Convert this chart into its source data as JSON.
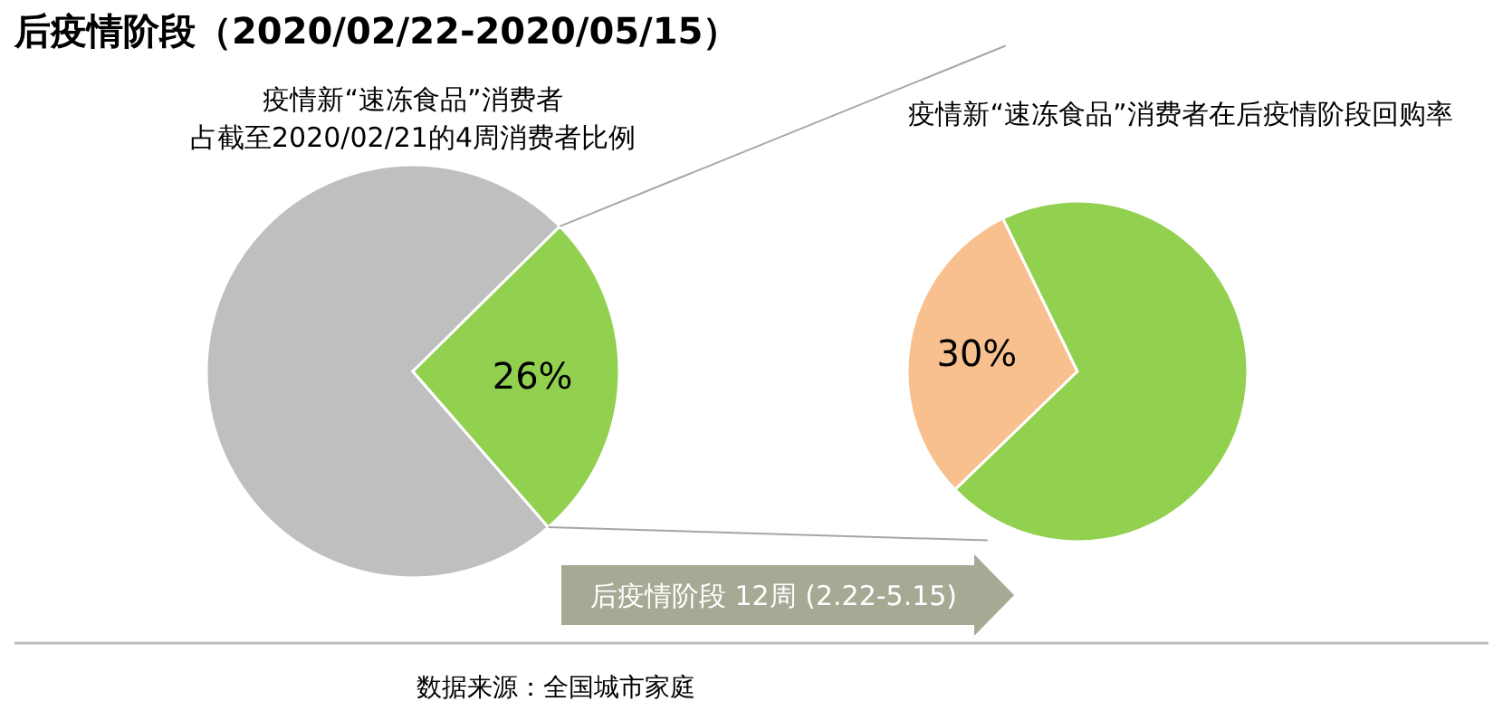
{
  "chart_data": [
    {
      "type": "pie",
      "title": "后疫情阶段（2020/02/22-2020/05/15）",
      "subtitle": "疫情新“速冻食品”消费者占截至2020/02/21的4周消费者比例",
      "categories": [
        null,
        null
      ],
      "values": [
        74,
        26
      ],
      "colors": [
        "#bfbfbf",
        "#92d050"
      ],
      "value_labels": [
        null,
        "26%"
      ],
      "annotations": [
        "数据来源：全国城市家庭"
      ]
    },
    {
      "type": "pie",
      "title": "疫情新“速冻食品”消费者在后疫情阶段回购率",
      "categories": [
        null,
        null
      ],
      "values": [
        30,
        70
      ],
      "colors": [
        "#f9c08f",
        "#92d050"
      ],
      "value_labels": [
        "30%",
        null
      ],
      "annotations": [
        "后疫情阶段 12周 (2.22-5.15)"
      ]
    }
  ]
}
